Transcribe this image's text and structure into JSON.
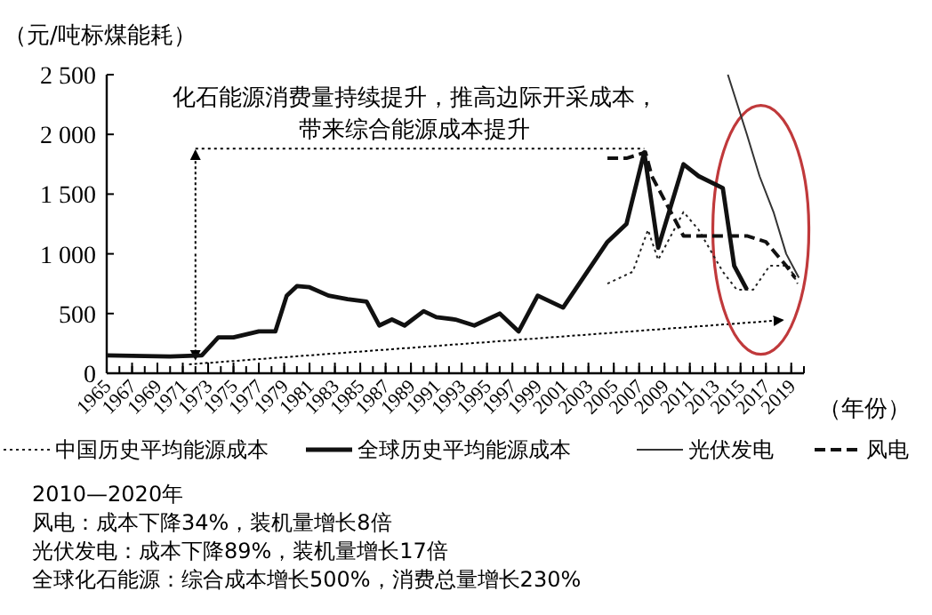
{
  "chart_data": {
    "type": "line",
    "ylabel": "（元/吨标煤能耗）",
    "xlabel": "（年份）",
    "xlim": [
      1965,
      2020
    ],
    "ylim": [
      0,
      2500
    ],
    "xticks": [
      1965,
      1967,
      1969,
      1971,
      1973,
      1975,
      1977,
      1979,
      1981,
      1983,
      1985,
      1987,
      1989,
      1991,
      1993,
      1995,
      1997,
      1999,
      2001,
      2003,
      2005,
      2007,
      2009,
      2011,
      2013,
      2015,
      2017,
      2019
    ],
    "yticks": [
      {
        "value": 0,
        "label": "0"
      },
      {
        "value": 500,
        "label": "500"
      },
      {
        "value": 1000,
        "label": "1 000"
      },
      {
        "value": 1500,
        "label": "1 500"
      },
      {
        "value": 2000,
        "label": "2 000"
      },
      {
        "value": 2500,
        "label": "2 500"
      }
    ],
    "legend": "bottom",
    "grid": false,
    "marker": "none",
    "series": [
      {
        "name": "中国历史平均能源成本",
        "color": "#222222",
        "line_style": "dotted",
        "x": [
          2004.5,
          2006.5,
          2007.7,
          2008.5,
          2010.5,
          2011.7,
          2013.6,
          2014.7,
          2016,
          2017.3,
          2018.8,
          2019.5
        ],
        "values": [
          750,
          850,
          1200,
          950,
          1350,
          1200,
          850,
          700,
          700,
          900,
          900,
          750
        ]
      },
      {
        "name": "全球历史平均能源成本",
        "color": "#111111",
        "line_style": "solid",
        "x": [
          1965,
          1970,
          1972.5,
          1973.8,
          1975,
          1977,
          1978.3,
          1979.2,
          1980,
          1981,
          1982.5,
          1984,
          1985.5,
          1986.5,
          1987.5,
          1988.5,
          1990,
          1991,
          1992.5,
          1994,
          1996,
          1997.5,
          1999,
          2001,
          2004.5,
          2006,
          2007.4,
          2008.5,
          2010.5,
          2011.7,
          2013.6,
          2014.5,
          2015.5
        ],
        "values": [
          150,
          140,
          150,
          300,
          300,
          350,
          350,
          650,
          730,
          720,
          650,
          620,
          600,
          400,
          450,
          400,
          520,
          470,
          450,
          400,
          500,
          350,
          650,
          550,
          1100,
          1250,
          1850,
          1050,
          1750,
          1650,
          1550,
          900,
          700
        ]
      },
      {
        "name": "光伏发电",
        "color": "#333333",
        "line_style": "solid",
        "x": [
          2014,
          2015.5,
          2016.5,
          2017.6,
          2018.6,
          2019.6
        ],
        "values": [
          2500,
          2000,
          1650,
          1350,
          1000,
          800
        ]
      },
      {
        "name": "风电",
        "color": "#111111",
        "line_style": "dashed",
        "x": [
          2004.5,
          2006,
          2007.5,
          2008,
          2010.5,
          2012,
          2015.5,
          2017,
          2018.6,
          2019.3
        ],
        "values": [
          1800,
          1800,
          1850,
          1650,
          1150,
          1150,
          1150,
          1100,
          900,
          800
        ]
      }
    ],
    "ref_lines": [
      {
        "axis": "y",
        "value": 1880,
        "line_style": "dotted",
        "color": "#000000"
      }
    ],
    "annotations": [
      "化石能源消费量持续提升，推高边际开采成本，",
      "带来综合能源成本提升",
      "2010—2020年",
      "风电：成本下降34%，装机量增长8倍",
      "光伏发电：成本下降89%，装机量增长17倍",
      "全球化石能源：综合成本增长500%，消费总量增长230%"
    ]
  }
}
